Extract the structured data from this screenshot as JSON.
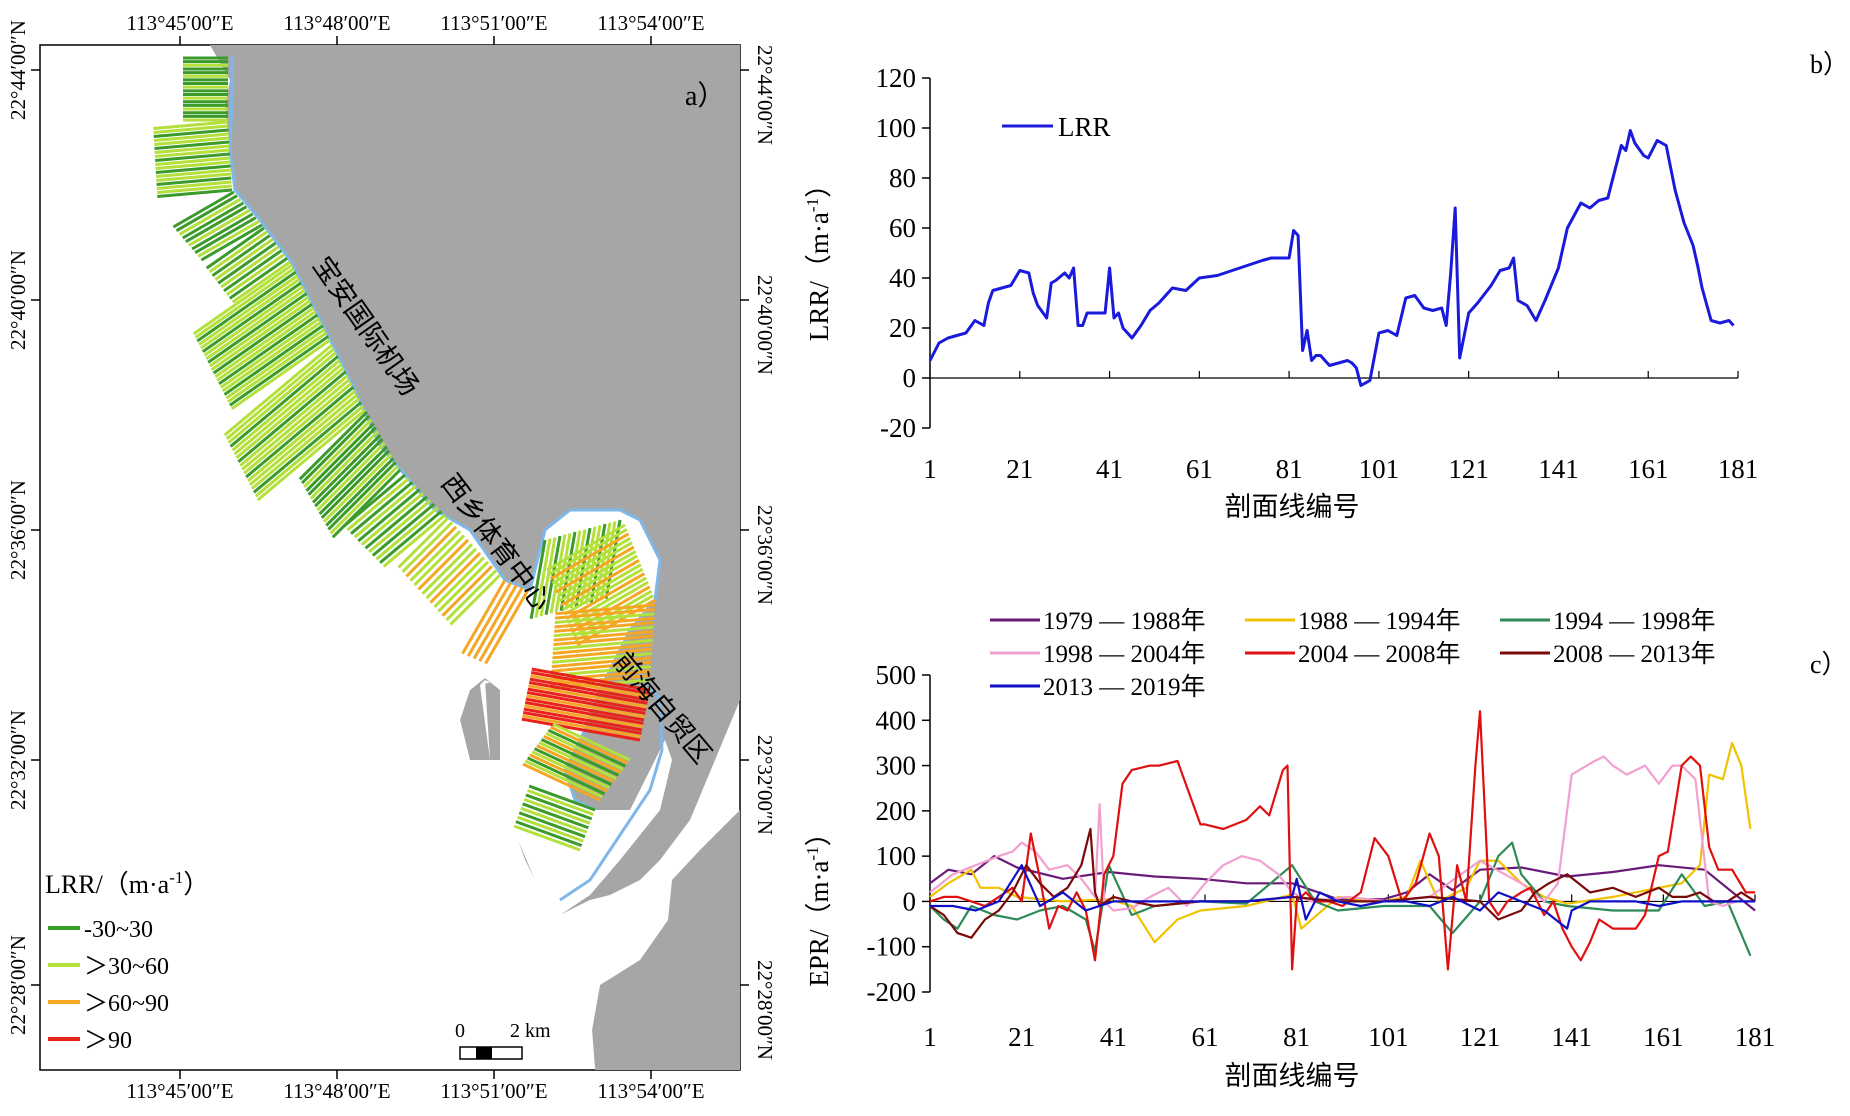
{
  "panel_a": {
    "label": "a）",
    "lon_ticks": [
      "113°45′00″E",
      "113°48′00″E",
      "113°51′00″E",
      "113°54′00″E"
    ],
    "lat_ticks": [
      "22°44′00″N",
      "22°40′00″N",
      "22°36′00″N",
      "22°32′00″N",
      "22°28′00″N"
    ],
    "places": [
      "宝安国际机场",
      "西乡体育中心",
      "前海自贸区"
    ],
    "legend_title": "LRR/（m·a",
    "legend_title_sup": "-1",
    "legend_title_end": "）",
    "legend": [
      {
        "label": "-30~30",
        "color": "#3a9a2a"
      },
      {
        "label": "＞30~60",
        "color": "#b4e03c"
      },
      {
        "label": "＞60~90",
        "color": "#f5a623"
      },
      {
        "label": "＞90",
        "color": "#e8231c"
      }
    ],
    "scale_zero": "0",
    "scale_text": "2 km",
    "colors": {
      "sea": "#a6a6a6",
      "shoreline": "#7fb8e8"
    }
  },
  "chart_data": [
    {
      "type": "line",
      "panel_label": "b）",
      "xlabel": "剖面线编号",
      "ylabel": "LRR/（m·a",
      "ylabel_sup": "-1",
      "ylabel_end": "）",
      "x_ticks": [
        1,
        21,
        41,
        61,
        81,
        101,
        121,
        141,
        161,
        181
      ],
      "y_ticks": [
        120,
        100,
        80,
        60,
        40,
        20,
        0,
        -20
      ],
      "xlim": [
        1,
        181
      ],
      "ylim": [
        -20,
        120
      ],
      "legend_position": "top-left",
      "series": [
        {
          "name": "LRR",
          "color": "#1a1adc",
          "x": [
            1,
            3,
            5,
            7,
            9,
            11,
            13,
            14,
            15,
            17,
            19,
            21,
            23,
            24,
            25,
            27,
            28,
            29,
            31,
            32,
            33,
            34,
            35,
            36,
            38,
            40,
            41,
            42,
            43,
            44,
            46,
            48,
            50,
            52,
            55,
            58,
            61,
            65,
            70,
            75,
            77,
            80,
            81,
            82,
            83,
            84,
            85,
            86,
            87,
            88,
            90,
            92,
            94,
            95,
            96,
            97,
            99,
            101,
            103,
            105,
            107,
            109,
            111,
            113,
            115,
            116,
            117,
            118,
            119,
            121,
            123,
            126,
            128,
            130,
            131,
            132,
            134,
            136,
            138,
            141,
            143,
            146,
            148,
            150,
            152,
            155,
            156,
            157,
            158,
            160,
            161,
            163,
            165,
            167,
            169,
            171,
            172,
            173,
            175,
            177,
            179,
            180
          ],
          "y": [
            7,
            14,
            16,
            17,
            18,
            23,
            21,
            30,
            35,
            36,
            37,
            43,
            42,
            34,
            29,
            24,
            38,
            39,
            42,
            40,
            44,
            21,
            21,
            26,
            26,
            26,
            44,
            24,
            26,
            20,
            16,
            21,
            27,
            30,
            36,
            35,
            40,
            41,
            44,
            47,
            48,
            48,
            48,
            59,
            57,
            11,
            19,
            7,
            9,
            9,
            5,
            6,
            7,
            6,
            4,
            -3,
            -1,
            18,
            19,
            17,
            32,
            33,
            28,
            27,
            28,
            21,
            42,
            68,
            8,
            26,
            30,
            37,
            43,
            44,
            48,
            31,
            29,
            23,
            31,
            44,
            60,
            70,
            68,
            71,
            72,
            93,
            91,
            99,
            94,
            89,
            88,
            95,
            93,
            75,
            62,
            53,
            45,
            36,
            23,
            22,
            23,
            21
          ]
        }
      ]
    },
    {
      "type": "line",
      "panel_label": "c）",
      "xlabel": "剖面线编号",
      "ylabel": "EPR/（m·a",
      "ylabel_sup": "-1",
      "ylabel_end": "）",
      "x_ticks": [
        1,
        21,
        41,
        61,
        81,
        101,
        121,
        141,
        161,
        181
      ],
      "y_ticks": [
        500,
        400,
        300,
        200,
        100,
        0,
        -100,
        -200
      ],
      "xlim": [
        1,
        181
      ],
      "ylim": [
        -200,
        500
      ],
      "legend_position": "top",
      "series": [
        {
          "name": "1979 — 1988年",
          "color": "#6a1b7a",
          "x": [
            1,
            5,
            10,
            15,
            20,
            30,
            40,
            50,
            60,
            70,
            80,
            90,
            100,
            105,
            110,
            115,
            121,
            130,
            140,
            150,
            160,
            170,
            181
          ],
          "y": [
            40,
            70,
            60,
            100,
            75,
            50,
            65,
            55,
            50,
            40,
            40,
            5,
            5,
            20,
            60,
            25,
            70,
            75,
            55,
            65,
            80,
            70,
            -20
          ]
        },
        {
          "name": "1988 — 1994年",
          "color": "#f2c200",
          "x": [
            1,
            5,
            10,
            12,
            16,
            20,
            25,
            30,
            40,
            45,
            50,
            55,
            60,
            70,
            80,
            82,
            90,
            100,
            105,
            108,
            112,
            118,
            121,
            125,
            130,
            135,
            140,
            150,
            160,
            165,
            169,
            171,
            174,
            176,
            178,
            180
          ],
          "y": [
            10,
            40,
            70,
            30,
            30,
            10,
            5,
            0,
            5,
            -10,
            -90,
            -40,
            -20,
            -10,
            15,
            -60,
            10,
            0,
            10,
            90,
            0,
            30,
            90,
            90,
            40,
            10,
            -5,
            10,
            30,
            40,
            80,
            280,
            270,
            350,
            300,
            160
          ]
        },
        {
          "name": "1994 — 1998年",
          "color": "#2e8b57",
          "x": [
            1,
            4,
            7,
            10,
            15,
            20,
            25,
            30,
            35,
            37,
            40,
            45,
            50,
            60,
            70,
            80,
            85,
            90,
            100,
            110,
            115,
            121,
            125,
            128,
            130,
            135,
            140,
            150,
            160,
            165,
            170,
            175,
            180
          ],
          "y": [
            -10,
            -40,
            -60,
            -10,
            -30,
            -40,
            -20,
            -10,
            -40,
            -110,
            80,
            -30,
            -10,
            0,
            -5,
            80,
            0,
            -20,
            -10,
            -10,
            -70,
            0,
            100,
            130,
            60,
            0,
            -10,
            -20,
            -20,
            60,
            -10,
            0,
            -120
          ]
        },
        {
          "name": "1998 — 2004年",
          "color": "#f2a0d0",
          "x": [
            1,
            6,
            11,
            16,
            19,
            21,
            24,
            27,
            31,
            34,
            37,
            38,
            39,
            41,
            45,
            49,
            53,
            57,
            61,
            65,
            69,
            73,
            77,
            80,
            84,
            88,
            92,
            101,
            110,
            121,
            130,
            135,
            138,
            141,
            146,
            148,
            150,
            153,
            157,
            160,
            163,
            165,
            168,
            171,
            174,
            177,
            180
          ],
          "y": [
            20,
            60,
            80,
            100,
            110,
            130,
            110,
            70,
            80,
            50,
            10,
            215,
            0,
            -20,
            -15,
            10,
            30,
            -10,
            40,
            80,
            100,
            90,
            60,
            20,
            0,
            5,
            10,
            0,
            10,
            90,
            40,
            0,
            40,
            280,
            310,
            320,
            300,
            280,
            300,
            260,
            300,
            300,
            270,
            0,
            -10,
            0,
            0
          ]
        },
        {
          "name": "2004 — 2008年",
          "color": "#e01010",
          "x": [
            1,
            4,
            7,
            10,
            13,
            16,
            19,
            21,
            23,
            25,
            27,
            29,
            31,
            33,
            35,
            37,
            39,
            41,
            43,
            45,
            47,
            49,
            51,
            55,
            60,
            61,
            65,
            70,
            73,
            75,
            78,
            79,
            80,
            81,
            83,
            85,
            88,
            91,
            95,
            98,
            101,
            104,
            107,
            110,
            112,
            114,
            116,
            118,
            120,
            121,
            123,
            125,
            127,
            130,
            132,
            135,
            137,
            139,
            141,
            143,
            145,
            147,
            150,
            152,
            155,
            157,
            160,
            162,
            165,
            167,
            169,
            171,
            173,
            176,
            179,
            181
          ],
          "y": [
            0,
            10,
            10,
            0,
            -10,
            10,
            30,
            0,
            150,
            50,
            -60,
            -10,
            -20,
            20,
            -20,
            -130,
            60,
            100,
            260,
            290,
            295,
            300,
            300,
            310,
            170,
            170,
            160,
            180,
            210,
            190,
            290,
            300,
            -150,
            0,
            20,
            0,
            0,
            -10,
            20,
            140,
            100,
            0,
            40,
            150,
            100,
            -150,
            80,
            0,
            300,
            420,
            0,
            -30,
            0,
            20,
            30,
            -30,
            0,
            -60,
            -100,
            -130,
            -90,
            -40,
            -60,
            -60,
            -60,
            -30,
            100,
            110,
            300,
            320,
            300,
            120,
            70,
            70,
            20,
            20
          ]
        },
        {
          "name": "2008 — 2013年",
          "color": "#7a0a0a",
          "x": [
            1,
            4,
            7,
            10,
            13,
            16,
            19,
            22,
            25,
            28,
            31,
            34,
            36,
            37,
            38,
            41,
            45,
            50,
            60,
            70,
            80,
            90,
            100,
            110,
            121,
            125,
            130,
            133,
            136,
            140,
            145,
            150,
            155,
            160,
            163,
            166,
            169,
            172,
            175,
            178,
            181
          ],
          "y": [
            -10,
            -30,
            -70,
            -80,
            -40,
            -20,
            20,
            80,
            40,
            10,
            30,
            80,
            160,
            20,
            -10,
            10,
            0,
            -10,
            0,
            0,
            10,
            0,
            0,
            10,
            0,
            -40,
            -20,
            20,
            40,
            60,
            20,
            30,
            10,
            30,
            10,
            10,
            20,
            0,
            0,
            20,
            0
          ]
        },
        {
          "name": "2013 — 2019年",
          "color": "#1010c8",
          "x": [
            1,
            6,
            11,
            16,
            21,
            25,
            30,
            35,
            41,
            50,
            61,
            70,
            80,
            81,
            83,
            86,
            90,
            95,
            100,
            105,
            110,
            115,
            121,
            125,
            130,
            135,
            140,
            141,
            145,
            150,
            155,
            160,
            165,
            170,
            175,
            181
          ],
          "y": [
            -10,
            -10,
            -20,
            0,
            80,
            -10,
            20,
            -20,
            0,
            0,
            0,
            0,
            10,
            50,
            -40,
            20,
            0,
            -10,
            0,
            0,
            -10,
            10,
            -20,
            20,
            0,
            -20,
            -60,
            -20,
            0,
            0,
            0,
            -10,
            0,
            0,
            0,
            0
          ]
        }
      ]
    }
  ]
}
